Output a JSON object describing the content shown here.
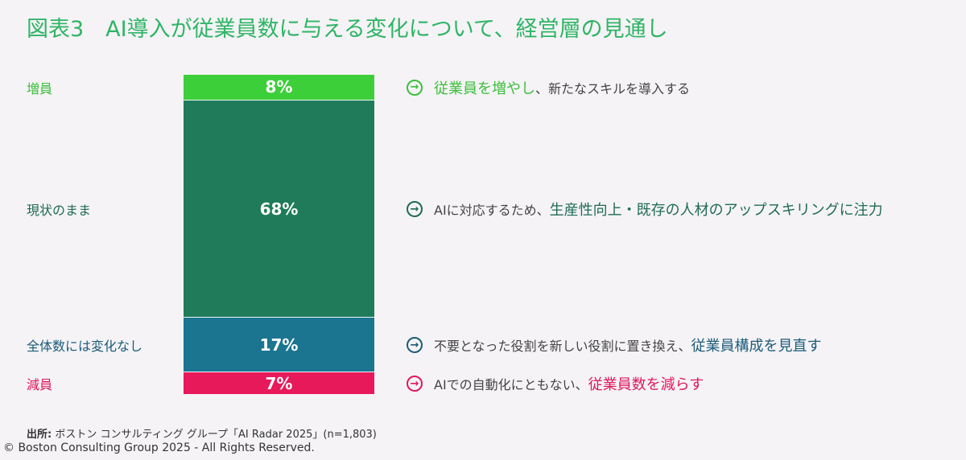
{
  "title": "図表3　AI導入が従業員数に与える変化について、経営層の見通し",
  "chart_data": {
    "type": "bar",
    "stacked": true,
    "title": "図表3　AI導入が従業員数に与える変化について、経営層の見通し",
    "categories": [
      "増員",
      "現状のまま",
      "全体数には変化なし",
      "減員"
    ],
    "values": [
      8,
      68,
      17,
      7
    ],
    "labels": [
      "8%",
      "68%",
      "17%",
      "7%"
    ],
    "colors": [
      "#3ccf3a",
      "#1f7b59",
      "#1b7590",
      "#e8195a"
    ],
    "label_colors": [
      "#3bbf3a",
      "#1f6b55",
      "#1b5c7a",
      "#e0185a"
    ],
    "ylim": [
      0,
      100
    ]
  },
  "notes": [
    {
      "pre": "",
      "hl": "従業員を増やし",
      "post": "、新たなスキルを導入する"
    },
    {
      "pre": "AIに対応するため、",
      "hl": "生産性向上・既存の人材のアップスキリングに注力",
      "post": ""
    },
    {
      "pre": "不要となった役割を新しい役割に置き換え、",
      "hl": "従業員構成を見直す",
      "post": ""
    },
    {
      "pre": "AIでの自動化にともない、",
      "hl": "従業員数を減らす",
      "post": ""
    }
  ],
  "icon": "arrow-right-circle-icon",
  "icon_glyph": "→",
  "source_label": "出所:",
  "source_text": " ボストン コンサルティング グループ「AI Radar 2025」(n=1,803)",
  "copyright": "© Boston Consulting Group 2025 - All Rights Reserved."
}
